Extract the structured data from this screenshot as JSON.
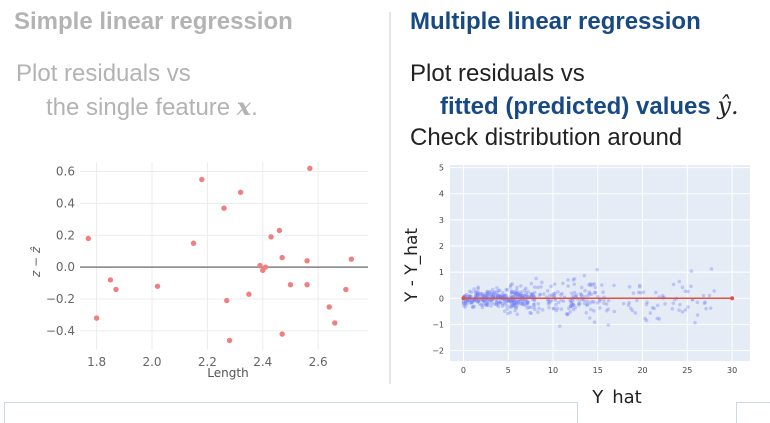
{
  "left": {
    "title": "Simple linear regression",
    "line1": "Plot residuals vs",
    "line2_prefix": "the single feature ",
    "line2_var": "x",
    "line2_suffix": "."
  },
  "right": {
    "title": "Multiple linear regression",
    "line1": "Plot residuals vs",
    "line2_em": "fitted (predicted) values ",
    "line2_var": "ŷ",
    "line2_suffix": ".",
    "line3": "Check distribution around"
  },
  "chart_data": [
    {
      "type": "scatter",
      "xlabel": "Length",
      "ylabel": "z − ẑ",
      "xlim": [
        1.74,
        2.78
      ],
      "ylim": [
        -0.52,
        0.66
      ],
      "xticks": [
        1.8,
        2.0,
        2.2,
        2.4,
        2.6
      ],
      "yticks": [
        -0.4,
        -0.2,
        0.0,
        0.2,
        0.4,
        0.6
      ],
      "xtick_labels": [
        "1.8",
        "2.0",
        "2.2",
        "2.4",
        "2.6"
      ],
      "ytick_labels": [
        "−0.4",
        "−0.2",
        "0.0",
        "0.2",
        "0.4",
        "0.6"
      ],
      "point_color": "#f07f7f",
      "zero_line_color": "#808080",
      "grid": true,
      "points": [
        [
          1.77,
          0.18
        ],
        [
          1.8,
          -0.32
        ],
        [
          1.85,
          -0.08
        ],
        [
          1.87,
          -0.14
        ],
        [
          2.02,
          -0.12
        ],
        [
          2.15,
          0.15
        ],
        [
          2.18,
          0.55
        ],
        [
          2.26,
          0.37
        ],
        [
          2.27,
          -0.21
        ],
        [
          2.28,
          -0.46
        ],
        [
          2.32,
          0.47
        ],
        [
          2.35,
          -0.17
        ],
        [
          2.39,
          0.01
        ],
        [
          2.4,
          -0.02
        ],
        [
          2.41,
          0.0
        ],
        [
          2.43,
          0.19
        ],
        [
          2.46,
          0.23
        ],
        [
          2.47,
          0.06
        ],
        [
          2.47,
          -0.42
        ],
        [
          2.5,
          -0.11
        ],
        [
          2.56,
          0.04
        ],
        [
          2.56,
          -0.11
        ],
        [
          2.57,
          0.62
        ],
        [
          2.64,
          -0.25
        ],
        [
          2.66,
          -0.35
        ],
        [
          2.7,
          -0.14
        ],
        [
          2.72,
          0.05
        ]
      ]
    },
    {
      "type": "scatter",
      "xlabel": "Y_hat",
      "ylabel": "Y - Y_hat",
      "xlim": [
        -1.5,
        32
      ],
      "ylim": [
        -2.4,
        5.1
      ],
      "xticks": [
        0,
        5,
        10,
        15,
        20,
        25,
        30
      ],
      "yticks": [
        -2,
        -1,
        0,
        1,
        2,
        3,
        4,
        5
      ],
      "xtick_labels": [
        "0",
        "5",
        "10",
        "15",
        "20",
        "25",
        "30"
      ],
      "ytick_labels": [
        "−2",
        "−1",
        "0",
        "1",
        "2",
        "3",
        "4",
        "5"
      ],
      "background": "#e5ecf6",
      "point_color": "#6f7ff5",
      "fit_line_color": "#e0533e",
      "fit_line": [
        [
          0,
          0
        ],
        [
          30,
          0
        ]
      ],
      "point_count": 520
    }
  ]
}
